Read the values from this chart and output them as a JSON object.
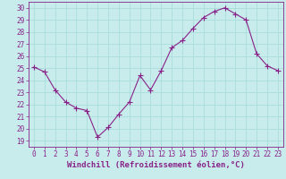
{
  "x": [
    0,
    1,
    2,
    3,
    4,
    5,
    6,
    7,
    8,
    9,
    10,
    11,
    12,
    13,
    14,
    15,
    16,
    17,
    18,
    19,
    20,
    21,
    22,
    23
  ],
  "y": [
    25.1,
    24.7,
    23.2,
    22.2,
    21.7,
    21.5,
    19.3,
    20.1,
    21.2,
    22.2,
    24.4,
    23.2,
    24.8,
    26.7,
    27.3,
    28.3,
    29.2,
    29.7,
    30.0,
    29.5,
    29.0,
    26.2,
    25.2,
    24.8
  ],
  "line_color": "#882288",
  "marker": "+",
  "marker_size": 4,
  "background_color": "#c8ecec",
  "grid_color": "#aadddd",
  "xlabel": "Windchill (Refroidissement éolien,°C)",
  "xlabel_color": "#882288",
  "ylabel_ticks": [
    19,
    20,
    21,
    22,
    23,
    24,
    25,
    26,
    27,
    28,
    29,
    30
  ],
  "xticks": [
    0,
    1,
    2,
    3,
    4,
    5,
    6,
    7,
    8,
    9,
    10,
    11,
    12,
    13,
    14,
    15,
    16,
    17,
    18,
    19,
    20,
    21,
    22,
    23
  ],
  "ylim": [
    18.5,
    30.5
  ],
  "xlim": [
    -0.5,
    23.5
  ],
  "tick_color": "#882288",
  "tick_fontsize": 5.5,
  "xlabel_fontsize": 6.5,
  "spine_color": "#882288"
}
